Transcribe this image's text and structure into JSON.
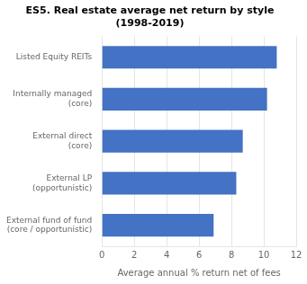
{
  "chart_data": {
    "type": "bar",
    "orientation": "horizontal",
    "title": "ES5. Real estate average net return by style\n(1998-2019)",
    "categories": [
      "External fund of fund\n(core / opportunistic)",
      "External LP\n(opportunistic)",
      "External direct\n(core)",
      "Internally managed\n(core)",
      "Listed Equity REITs"
    ],
    "values": [
      6.9,
      8.3,
      8.7,
      10.2,
      10.8
    ],
    "color": "#4472C4",
    "xlabel": "Average annual % return net of fees",
    "xlim": [
      0,
      12
    ],
    "xticks": [
      0,
      2,
      4,
      6,
      8,
      10,
      12
    ],
    "grid": true
  }
}
